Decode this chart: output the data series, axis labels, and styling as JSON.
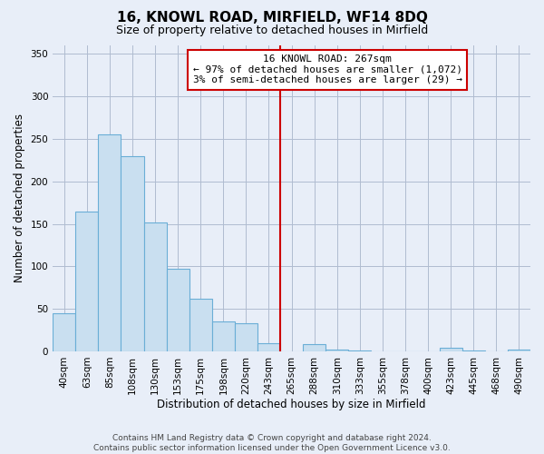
{
  "title": "16, KNOWL ROAD, MIRFIELD, WF14 8DQ",
  "subtitle": "Size of property relative to detached houses in Mirfield",
  "xlabel": "Distribution of detached houses by size in Mirfield",
  "ylabel": "Number of detached properties",
  "bar_labels": [
    "40sqm",
    "63sqm",
    "85sqm",
    "108sqm",
    "130sqm",
    "153sqm",
    "175sqm",
    "198sqm",
    "220sqm",
    "243sqm",
    "265sqm",
    "288sqm",
    "310sqm",
    "333sqm",
    "355sqm",
    "378sqm",
    "400sqm",
    "423sqm",
    "445sqm",
    "468sqm",
    "490sqm"
  ],
  "bar_heights": [
    45,
    165,
    255,
    230,
    152,
    97,
    62,
    35,
    33,
    10,
    0,
    8,
    2,
    1,
    0,
    0,
    0,
    4,
    1,
    0,
    2
  ],
  "bar_color": "#c9dff0",
  "bar_edge_color": "#6aaed6",
  "vline_color": "#cc0000",
  "annotation_title": "16 KNOWL ROAD: 267sqm",
  "annotation_line1": "← 97% of detached houses are smaller (1,072)",
  "annotation_line2": "3% of semi-detached houses are larger (29) →",
  "ylim": [
    0,
    360
  ],
  "yticks": [
    0,
    50,
    100,
    150,
    200,
    250,
    300,
    350
  ],
  "footer1": "Contains HM Land Registry data © Crown copyright and database right 2024.",
  "footer2": "Contains public sector information licensed under the Open Government Licence v3.0.",
  "bg_color": "#e8eef8",
  "grid_color": "#b0bcd0",
  "title_fontsize": 11,
  "subtitle_fontsize": 9,
  "ylabel_fontsize": 8.5,
  "xlabel_fontsize": 8.5,
  "tick_fontsize": 7.5,
  "footer_fontsize": 6.5
}
